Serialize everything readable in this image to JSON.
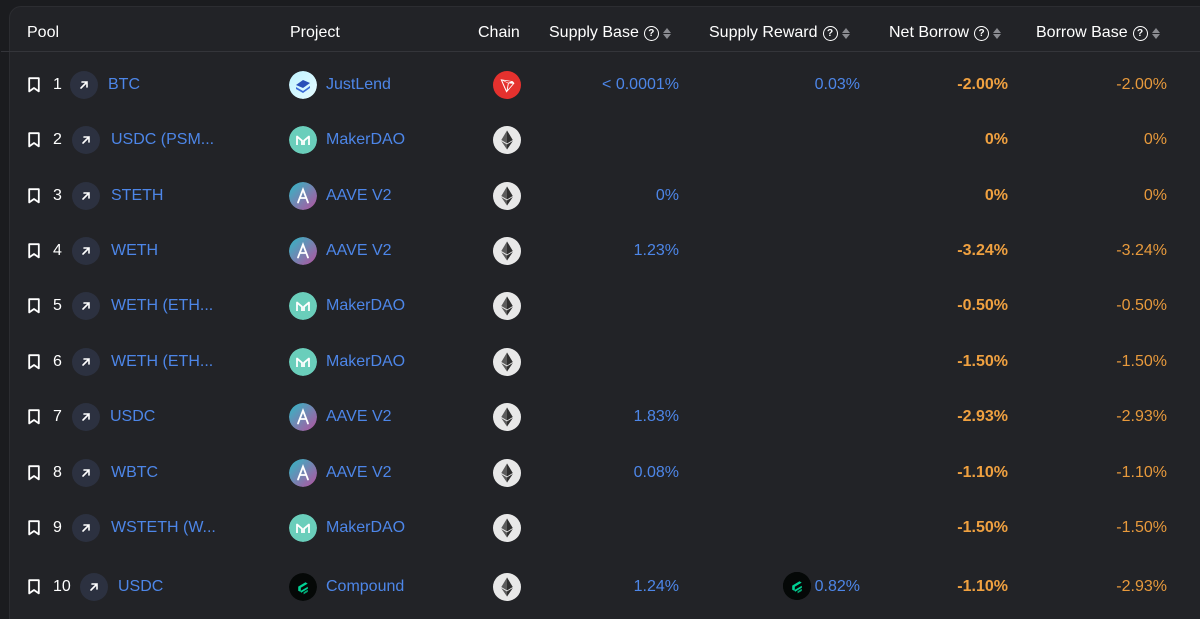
{
  "columns": {
    "pool": "Pool",
    "project": "Project",
    "chain": "Chain",
    "supply_base": "Supply Base",
    "supply_reward": "Supply Reward",
    "net_borrow": "Net Borrow",
    "borrow_base": "Borrow Base"
  },
  "icons": {
    "help": "?"
  },
  "colors": {
    "link_blue": "#4d86e8",
    "net_borrow_orange": "#f0a140",
    "borrow_base_orange": "#e89a3c",
    "tron_red": "#e5312e",
    "makerdao_teal": "#6acebb"
  },
  "rows": [
    {
      "rank": "1",
      "pool": "BTC",
      "project": "JustLend",
      "project_icon": "justlend-logo",
      "chain": "tron-logo",
      "supply_base": "< 0.0001%",
      "supply_reward": "0.03%",
      "net_borrow": "-2.00%",
      "borrow_base": "-2.00%"
    },
    {
      "rank": "2",
      "pool": "USDC (PSM...",
      "project": "MakerDAO",
      "project_icon": "makerdao-logo",
      "chain": "ethereum-logo",
      "supply_base": "",
      "supply_reward": "",
      "net_borrow": "0%",
      "borrow_base": "0%"
    },
    {
      "rank": "3",
      "pool": "STETH",
      "project": "AAVE V2",
      "project_icon": "aave-logo",
      "chain": "ethereum-logo",
      "supply_base": "0%",
      "supply_reward": "",
      "net_borrow": "0%",
      "borrow_base": "0%"
    },
    {
      "rank": "4",
      "pool": "WETH",
      "project": "AAVE V2",
      "project_icon": "aave-logo",
      "chain": "ethereum-logo",
      "supply_base": "1.23%",
      "supply_reward": "",
      "net_borrow": "-3.24%",
      "borrow_base": "-3.24%"
    },
    {
      "rank": "5",
      "pool": "WETH (ETH...",
      "project": "MakerDAO",
      "project_icon": "makerdao-logo",
      "chain": "ethereum-logo",
      "supply_base": "",
      "supply_reward": "",
      "net_borrow": "-0.50%",
      "borrow_base": "-0.50%"
    },
    {
      "rank": "6",
      "pool": "WETH (ETH...",
      "project": "MakerDAO",
      "project_icon": "makerdao-logo",
      "chain": "ethereum-logo",
      "supply_base": "",
      "supply_reward": "",
      "net_borrow": "-1.50%",
      "borrow_base": "-1.50%"
    },
    {
      "rank": "7",
      "pool": "USDC",
      "project": "AAVE V2",
      "project_icon": "aave-logo",
      "chain": "ethereum-logo",
      "supply_base": "1.83%",
      "supply_reward": "",
      "net_borrow": "-2.93%",
      "borrow_base": "-2.93%"
    },
    {
      "rank": "8",
      "pool": "WBTC",
      "project": "AAVE V2",
      "project_icon": "aave-logo",
      "chain": "ethereum-logo",
      "supply_base": "0.08%",
      "supply_reward": "",
      "net_borrow": "-1.10%",
      "borrow_base": "-1.10%"
    },
    {
      "rank": "9",
      "pool": "WSTETH (W...",
      "project": "MakerDAO",
      "project_icon": "makerdao-logo",
      "chain": "ethereum-logo",
      "supply_base": "",
      "supply_reward": "",
      "net_borrow": "-1.50%",
      "borrow_base": "-1.50%"
    },
    {
      "rank": "10",
      "pool": "USDC",
      "project": "Compound",
      "project_icon": "compound-logo",
      "chain": "ethereum-logo",
      "supply_base": "1.24%",
      "supply_reward": "0.82%",
      "reward_icon": "compound-logo",
      "net_borrow": "-1.10%",
      "borrow_base": "-2.93%"
    }
  ]
}
